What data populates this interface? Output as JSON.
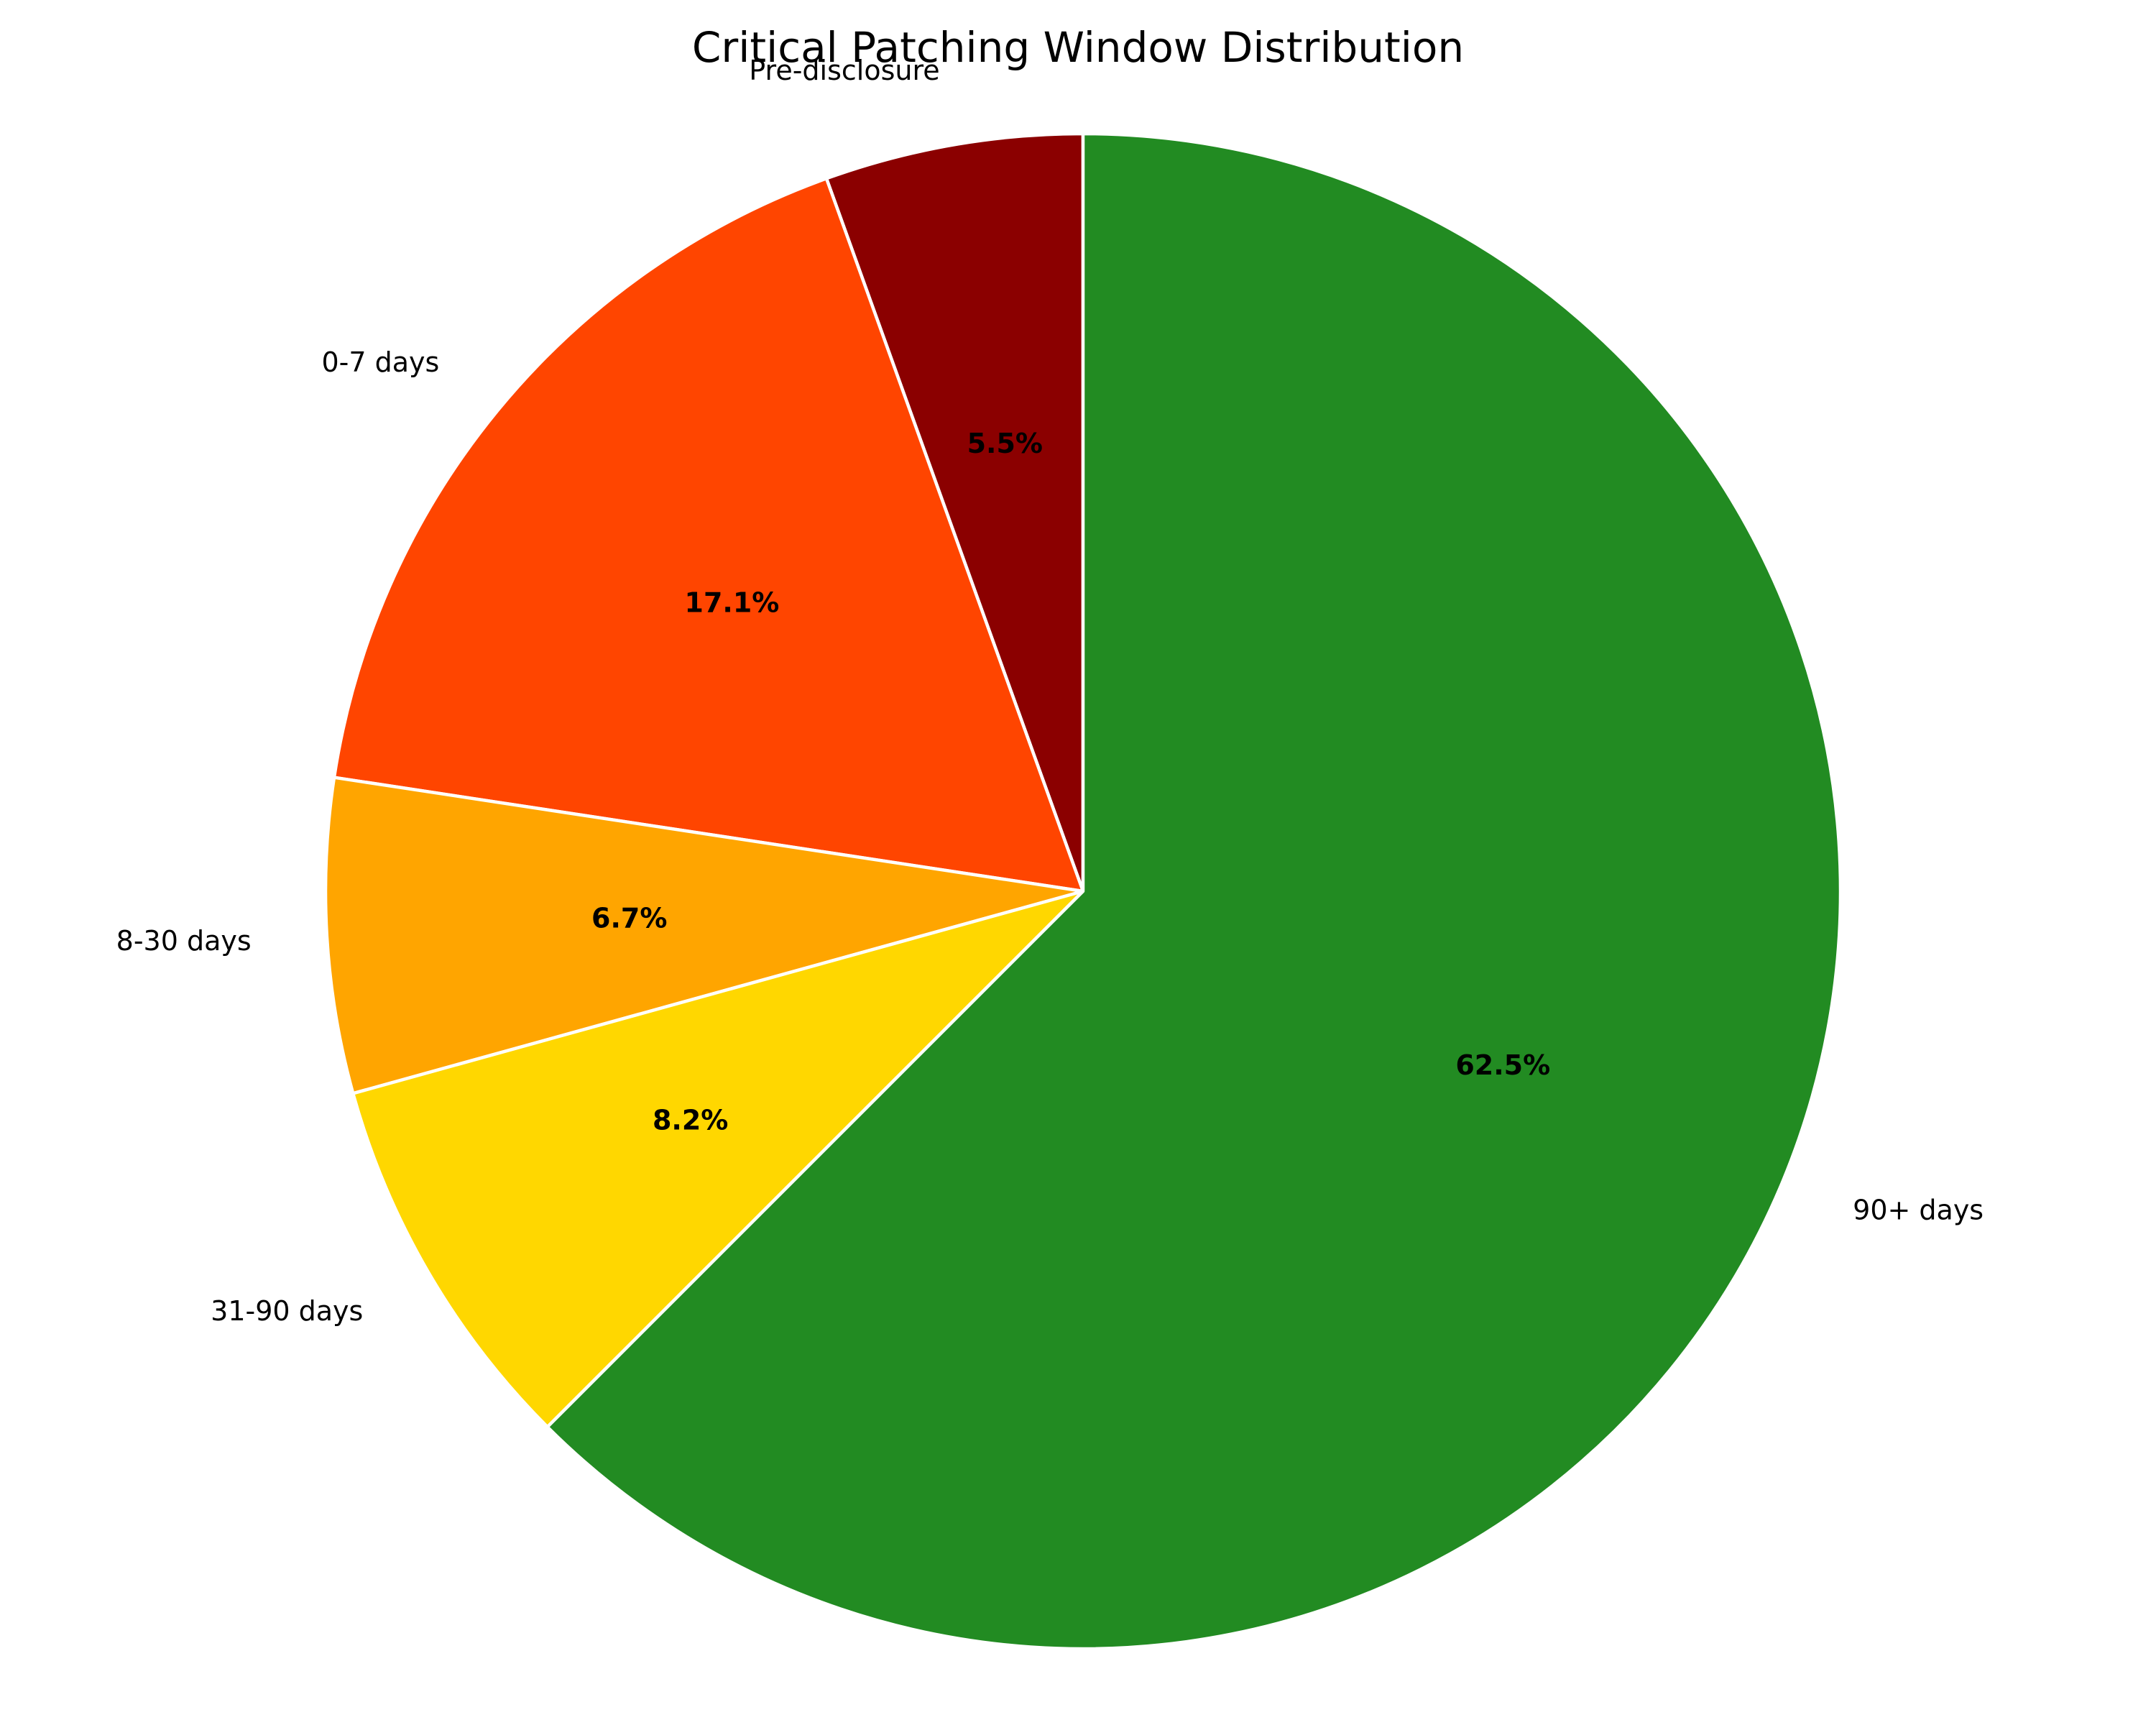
{
  "chart_data": {
    "type": "pie",
    "title": "Critical Patching Window Distribution",
    "start_angle_deg": 90,
    "direction": "counterclockwise",
    "slices": [
      {
        "label": "Pre-disclosure",
        "value": 5.5,
        "pct_label": "5.5%",
        "color": "#8B0000"
      },
      {
        "label": "0-7 days",
        "value": 17.1,
        "pct_label": "17.1%",
        "color": "#FF4500"
      },
      {
        "label": "8-30 days",
        "value": 6.7,
        "pct_label": "6.7%",
        "color": "#FFA500"
      },
      {
        "label": "31-90 days",
        "value": 8.2,
        "pct_label": "8.2%",
        "color": "#FFD700"
      },
      {
        "label": "90+ days",
        "value": 62.5,
        "pct_label": "62.5%",
        "color": "#228B22"
      }
    ]
  }
}
